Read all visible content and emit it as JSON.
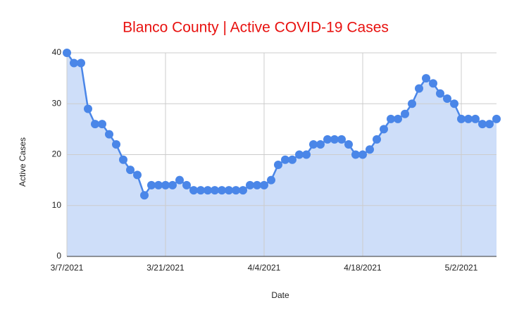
{
  "chart_data": {
    "type": "area-line",
    "title": "Blanco County | Active COVID-19 Cases",
    "x_label": "Date",
    "y_label": "Active Cases",
    "x": [
      "3/7/2021",
      "3/8/2021",
      "3/9/2021",
      "3/10/2021",
      "3/11/2021",
      "3/12/2021",
      "3/13/2021",
      "3/14/2021",
      "3/15/2021",
      "3/16/2021",
      "3/17/2021",
      "3/18/2021",
      "3/19/2021",
      "3/20/2021",
      "3/21/2021",
      "3/22/2021",
      "3/23/2021",
      "3/24/2021",
      "3/25/2021",
      "3/26/2021",
      "3/27/2021",
      "3/28/2021",
      "3/29/2021",
      "3/30/2021",
      "3/31/2021",
      "4/1/2021",
      "4/2/2021",
      "4/3/2021",
      "4/4/2021",
      "4/5/2021",
      "4/6/2021",
      "4/7/2021",
      "4/8/2021",
      "4/9/2021",
      "4/10/2021",
      "4/11/2021",
      "4/12/2021",
      "4/13/2021",
      "4/14/2021",
      "4/15/2021",
      "4/16/2021",
      "4/17/2021",
      "4/18/2021",
      "4/19/2021",
      "4/20/2021",
      "4/21/2021",
      "4/22/2021",
      "4/23/2021",
      "4/24/2021",
      "4/25/2021",
      "4/26/2021",
      "4/27/2021",
      "4/28/2021",
      "4/29/2021",
      "4/30/2021",
      "5/1/2021",
      "5/2/2021",
      "5/3/2021",
      "5/4/2021",
      "5/5/2021",
      "5/6/2021",
      "5/7/2021"
    ],
    "series": [
      {
        "name": "Active Cases",
        "color": "#4a86e8",
        "fill": "#c9daf8",
        "values": [
          40,
          38,
          38,
          29,
          26,
          26,
          24,
          22,
          19,
          17,
          16,
          12,
          14,
          14,
          14,
          14,
          15,
          14,
          13,
          13,
          13,
          13,
          13,
          13,
          13,
          13,
          14,
          14,
          14,
          15,
          18,
          19,
          19,
          20,
          20,
          22,
          22,
          23,
          23,
          23,
          22,
          20,
          20,
          21,
          23,
          25,
          27,
          27,
          28,
          30,
          33,
          35,
          34,
          32,
          31,
          30,
          27,
          27,
          27,
          26,
          26,
          27
        ]
      }
    ],
    "xlim": [
      "3/7/2021",
      "5/7/2021"
    ],
    "xticks": [
      "3/7/2021",
      "3/21/2021",
      "4/4/2021",
      "4/18/2021",
      "5/2/2021"
    ],
    "ylim": [
      0,
      40
    ],
    "yticks": [
      0,
      10,
      20,
      30,
      40
    ],
    "grid": true
  }
}
